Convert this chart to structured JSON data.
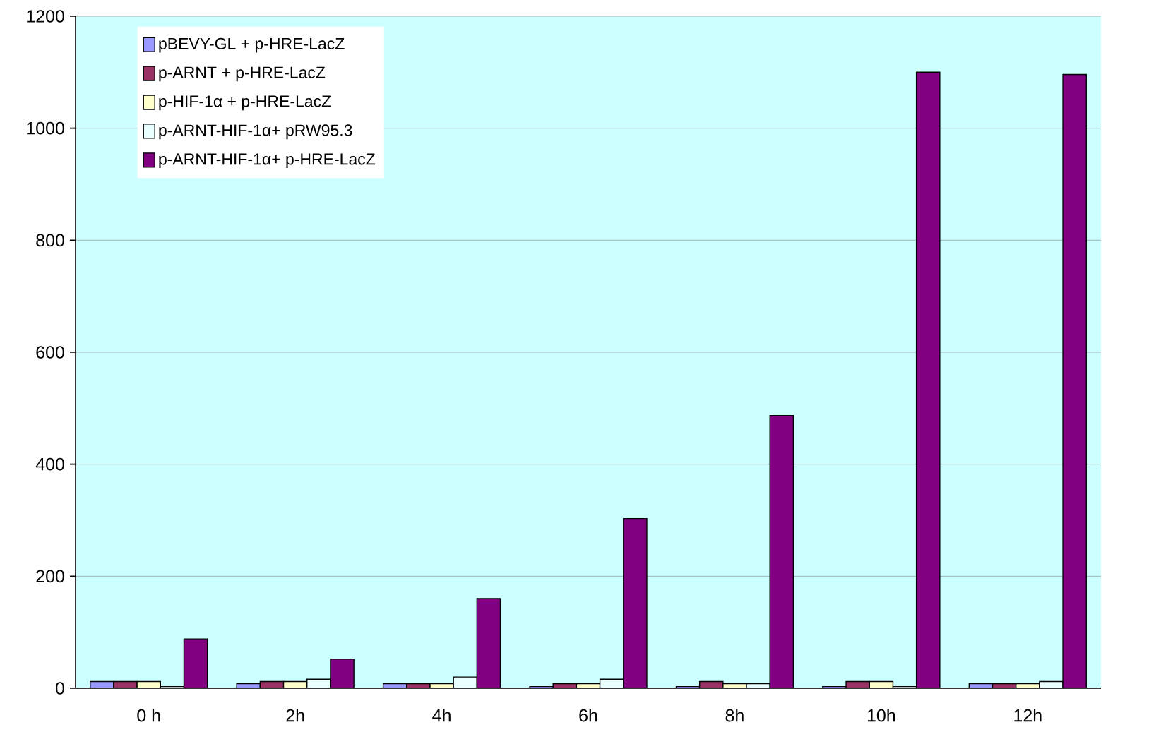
{
  "chart_data": {
    "type": "bar",
    "categories": [
      "0 h",
      "2h",
      "4h",
      "6h",
      "8h",
      "10h",
      "12h"
    ],
    "series": [
      {
        "name": "pBEVY-GL + p-HRE-LacZ",
        "color": "#9999ff",
        "values": [
          12,
          8,
          8,
          3,
          3,
          3,
          8
        ]
      },
      {
        "name": "p-ARNT  + p-HRE-LacZ",
        "color": "#993366",
        "values": [
          12,
          12,
          8,
          8,
          12,
          12,
          8
        ]
      },
      {
        "name": "p-HIF-1α + p-HRE-LacZ",
        "color": "#ffffcc",
        "values": [
          12,
          12,
          8,
          8,
          8,
          12,
          8
        ]
      },
      {
        "name": "p-ARNT-HIF-1α+ pRW95.3",
        "color": "#eaffff",
        "values": [
          3,
          16,
          20,
          16,
          8,
          3,
          12
        ]
      },
      {
        "name": "p-ARNT-HIF-1α+ p-HRE-LacZ",
        "color": "#800080",
        "values": [
          88,
          52,
          160,
          303,
          487,
          1100,
          1096
        ]
      }
    ],
    "ylim": [
      0,
      1200
    ],
    "yticks": [
      0,
      200,
      400,
      600,
      800,
      1000,
      1200
    ],
    "grid": "y",
    "legend": "top left"
  }
}
